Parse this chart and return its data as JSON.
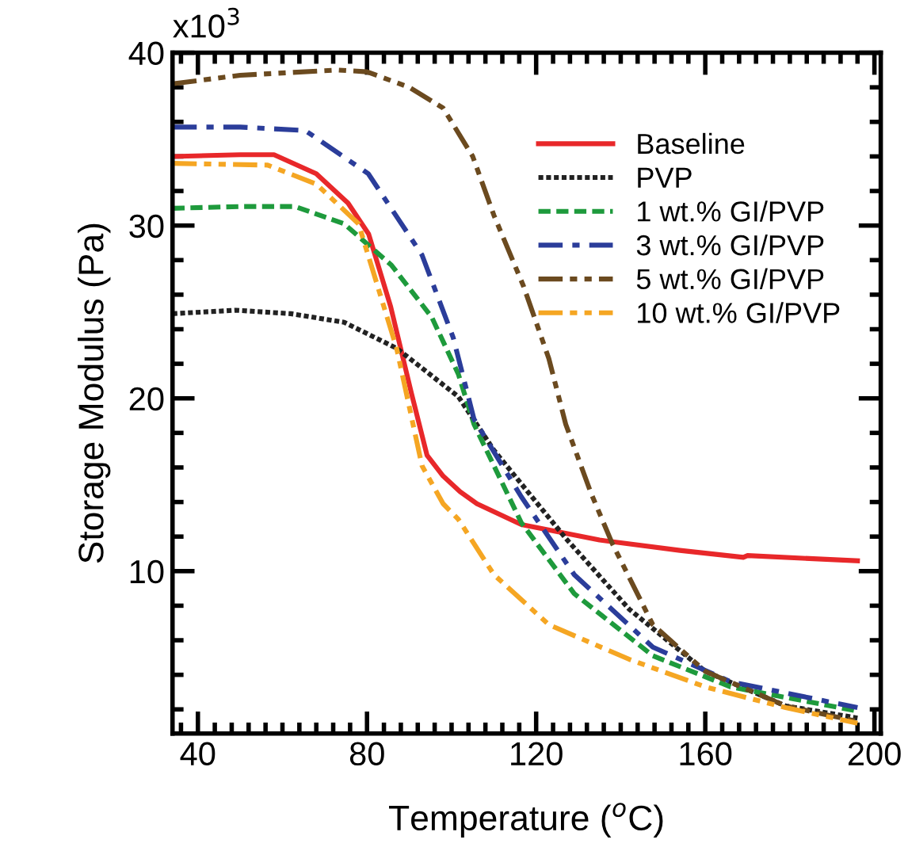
{
  "chart_data": {
    "type": "line",
    "xlabel": "Temperature ($^{o}$C)",
    "ylabel": "Storage Modulus (Pa)",
    "xlim": [
      34,
      201.5
    ],
    "xticks": [
      40,
      80,
      120,
      160,
      200
    ],
    "ylim": [
      0.6,
      40
    ],
    "yticks": [
      10,
      20,
      30,
      40
    ],
    "annotations": [
      "x10$^{3}$"
    ],
    "grid": false,
    "legend": "top right",
    "marker": "none",
    "series": [
      {
        "name": "Baseline",
        "color": "#e8282a",
        "line_style": "solid",
        "x": [
          34,
          50,
          58,
          68,
          75.5,
          80.4,
          85.6,
          90.5,
          94.2,
          98,
          102,
          106,
          116.5,
          135,
          154,
          169,
          170,
          196
        ],
        "values": [
          34.0,
          34.1,
          34.1,
          33.0,
          31.3,
          29.5,
          25.3,
          20.3,
          16.7,
          15.5,
          14.6,
          13.9,
          12.7,
          11.8,
          11.2,
          10.8,
          10.9,
          10.6
        ]
      },
      {
        "name": "PVP",
        "color": "#222222",
        "line_style": "dotted",
        "x": [
          34,
          49,
          62,
          74.6,
          87,
          101.6,
          110,
          127,
          142,
          160,
          179,
          196
        ],
        "values": [
          24.9,
          25.1,
          24.9,
          24.4,
          22.9,
          20.1,
          17.0,
          11.9,
          7.8,
          4.2,
          2.2,
          1.5
        ]
      },
      {
        "name": "1 wt.% GI/PVP",
        "color": "#1e9a3c",
        "line_style": "dashed",
        "x": [
          34,
          50,
          63,
          74.6,
          85.8,
          95.3,
          101.6,
          105.3,
          116.5,
          129,
          147.6,
          166,
          196
        ],
        "values": [
          31.0,
          31.1,
          31.1,
          30.1,
          27.7,
          24.7,
          21.4,
          18.5,
          12.8,
          8.7,
          5.1,
          3.3,
          1.9
        ]
      },
      {
        "name": "3 wt.% GI/PVP",
        "color": "#2b3d9a",
        "line_style": "dashdot",
        "x": [
          34,
          50,
          65.4,
          80.3,
          93,
          100.4,
          105.3,
          116.5,
          129,
          147.6,
          166,
          196
        ],
        "values": [
          35.7,
          35.7,
          35.5,
          33.0,
          28.3,
          23.5,
          18.8,
          14.3,
          9.8,
          5.6,
          3.6,
          2.1
        ]
      },
      {
        "name": "5 wt.% GI/PVP",
        "color": "#6b4a1f",
        "line_style": "dashdotdot",
        "x": [
          34,
          50,
          73,
          80,
          90,
          98,
          105,
          110,
          117,
          123,
          127,
          133,
          138,
          147.6,
          160,
          179,
          196
        ],
        "values": [
          38.2,
          38.7,
          39.0,
          38.9,
          38.0,
          36.8,
          34.0,
          30.6,
          26.5,
          22.3,
          18.5,
          14.5,
          11.6,
          6.9,
          4.2,
          2.2,
          1.3
        ]
      },
      {
        "name": "10 wt.% GI/PVP",
        "color": "#f5a623",
        "line_style": "dashdotdot",
        "x": [
          34,
          56.5,
          68,
          78,
          87,
          93,
          98,
          101.6,
          110,
          123,
          142,
          160,
          179,
          196
        ],
        "values": [
          33.6,
          33.5,
          32.4,
          30.1,
          22.9,
          16.1,
          13.9,
          13.0,
          9.8,
          6.9,
          4.9,
          3.3,
          2.1,
          1.2
        ]
      }
    ]
  }
}
